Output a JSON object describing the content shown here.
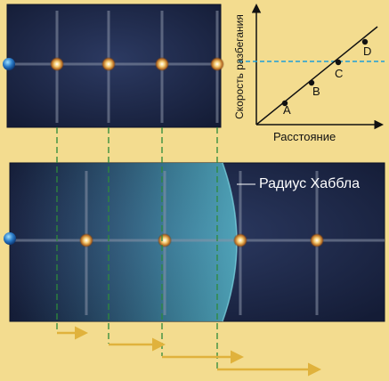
{
  "hubble_radius_label": "Радиус Хаббла",
  "chart_data": {
    "type": "scatter",
    "xlabel": "Расстояние",
    "ylabel": "Скорость разбегания",
    "points": [
      {
        "label": "A",
        "x": 1,
        "y": 1
      },
      {
        "label": "B",
        "x": 2,
        "y": 2
      },
      {
        "label": "C",
        "x": 3,
        "y": 3
      },
      {
        "label": "D",
        "x": 4,
        "y": 4
      }
    ],
    "reference_line": {
      "style": "dashed",
      "color": "#1e9fd8",
      "y": 3
    },
    "trend_line": "through origin"
  },
  "colors": {
    "background": "#f3dc8f",
    "panel": "#1e2b4e",
    "grid_line": "#8a94a8",
    "drop_line": "#2e8a3a",
    "velocity_arrow": "#e0b23c",
    "hubble_glow": "#4fb5c9"
  }
}
